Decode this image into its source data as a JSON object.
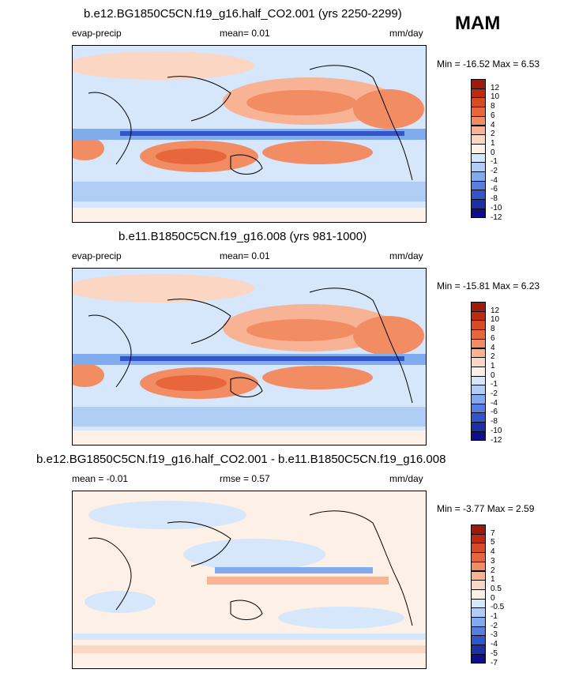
{
  "season": "MAM",
  "chart_data": [
    {
      "type": "heatmap",
      "title": "b.e12.BG1850C5CN.f19_g16.half_CO2.001 (yrs 2250-2299)",
      "left_label": "evap-precip",
      "center_label": "mean=  0.01",
      "units": "mm/day",
      "minmax": "Min = -16.52 Max =  6.53",
      "colorbar_levels": [
        "12",
        "10",
        "8",
        "6",
        "4",
        "2",
        "1",
        "0",
        "-1",
        "-2",
        "-4",
        "-6",
        "-8",
        "-10",
        "-12"
      ],
      "colors": [
        "#9e1a0b",
        "#bd2a12",
        "#d74a26",
        "#e8663b",
        "#f28c63",
        "#f7b394",
        "#fbd6c3",
        "#fdf0e6",
        "#d6e6fb",
        "#afcdf5",
        "#80acee",
        "#567fe0",
        "#3355cb",
        "#1a30a6",
        "#0d0f8a"
      ]
    },
    {
      "type": "heatmap",
      "title": "b.e11.B1850C5CN.f19_g16.008 (yrs 981-1000)",
      "left_label": "evap-precip",
      "center_label": "mean=  0.01",
      "units": "mm/day",
      "minmax": "Min = -15.81 Max =  6.23",
      "colorbar_levels": [
        "12",
        "10",
        "8",
        "6",
        "4",
        "2",
        "1",
        "0",
        "-1",
        "-2",
        "-4",
        "-6",
        "-8",
        "-10",
        "-12"
      ],
      "colors": [
        "#9e1a0b",
        "#bd2a12",
        "#d74a26",
        "#e8663b",
        "#f28c63",
        "#f7b394",
        "#fbd6c3",
        "#fdf0e6",
        "#d6e6fb",
        "#afcdf5",
        "#80acee",
        "#567fe0",
        "#3355cb",
        "#1a30a6",
        "#0d0f8a"
      ]
    },
    {
      "type": "heatmap",
      "title": "b.e12.BG1850C5CN.f19_g16.half_CO2.001 - b.e11.B1850C5CN.f19_g16.008",
      "left_label": "mean =  -0.01",
      "center_label": "rmse =  0.57",
      "units": "mm/day",
      "minmax": "Min =  -3.77 Max =  2.59",
      "colorbar_levels": [
        "7",
        "5",
        "4",
        "3",
        "2",
        "1",
        "0.5",
        "0",
        "-0.5",
        "-1",
        "-2",
        "-3",
        "-4",
        "-5",
        "-7"
      ],
      "colors": [
        "#9e1a0b",
        "#bd2a12",
        "#d74a26",
        "#e8663b",
        "#f28c63",
        "#f7b394",
        "#fbd6c3",
        "#fdf0e6",
        "#d6e6fb",
        "#afcdf5",
        "#80acee",
        "#567fe0",
        "#3355cb",
        "#1a30a6",
        "#0d0f8a"
      ]
    }
  ]
}
